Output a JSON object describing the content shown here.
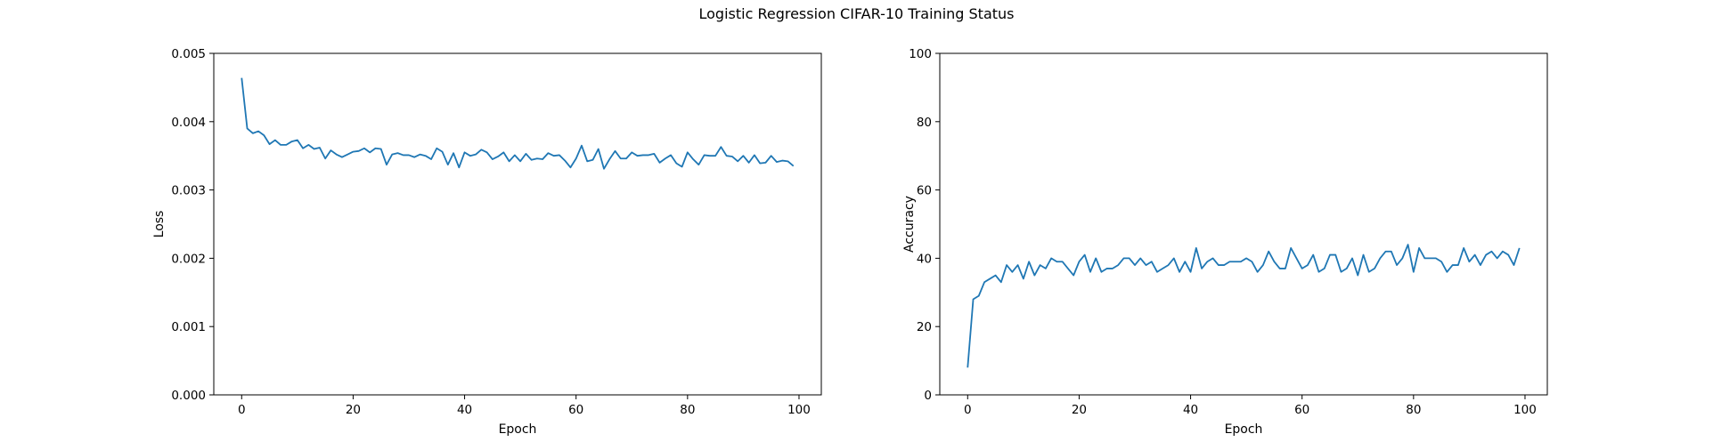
{
  "figure": {
    "title": "Logistic Regression CIFAR-10 Training Status"
  },
  "chart_data": [
    {
      "type": "line",
      "xlabel": "Epoch",
      "ylabel": "Loss",
      "xlim": [
        -5,
        104
      ],
      "ylim": [
        0,
        0.005
      ],
      "xticks": [
        0,
        20,
        40,
        60,
        80,
        100
      ],
      "yticks": [
        0.0,
        0.001,
        0.002,
        0.003,
        0.004,
        0.005
      ],
      "ytick_labels": [
        "0.000",
        "0.001",
        "0.002",
        "0.003",
        "0.004",
        "0.005"
      ],
      "grid": false,
      "color": "#1f77b4",
      "series": [
        {
          "x": [
            0,
            1,
            2,
            3,
            4,
            5,
            6,
            7,
            8,
            9,
            10,
            11,
            12,
            13,
            14,
            15,
            16,
            17,
            18,
            19,
            20,
            21,
            22,
            23,
            24,
            25,
            26,
            27,
            28,
            29,
            30,
            31,
            32,
            33,
            34,
            35,
            36,
            37,
            38,
            39,
            40,
            41,
            42,
            43,
            44,
            45,
            46,
            47,
            48,
            49,
            50,
            51,
            52,
            53,
            54,
            55,
            56,
            57,
            58,
            59,
            60,
            61,
            62,
            63,
            64,
            65,
            66,
            67,
            68,
            69,
            70,
            71,
            72,
            73,
            74,
            75,
            76,
            77,
            78,
            79,
            80,
            81,
            82,
            83,
            84,
            85,
            86,
            87,
            88,
            89,
            90,
            91,
            92,
            93,
            94,
            95,
            96,
            97,
            98,
            99
          ],
          "values": [
            0.00464,
            0.0039,
            0.00383,
            0.00386,
            0.0038,
            0.00367,
            0.00373,
            0.00366,
            0.00366,
            0.00371,
            0.00373,
            0.00361,
            0.00366,
            0.0036,
            0.00362,
            0.00346,
            0.00358,
            0.00352,
            0.00348,
            0.00352,
            0.00356,
            0.00357,
            0.00361,
            0.00355,
            0.00361,
            0.0036,
            0.00337,
            0.00352,
            0.00354,
            0.00351,
            0.00351,
            0.00348,
            0.00352,
            0.0035,
            0.00345,
            0.00361,
            0.00356,
            0.00337,
            0.00354,
            0.00333,
            0.00355,
            0.0035,
            0.00352,
            0.00359,
            0.00355,
            0.00345,
            0.00349,
            0.00355,
            0.00342,
            0.00351,
            0.00342,
            0.00353,
            0.00344,
            0.00346,
            0.00345,
            0.00354,
            0.0035,
            0.00351,
            0.00343,
            0.00333,
            0.00346,
            0.00365,
            0.00342,
            0.00344,
            0.0036,
            0.00331,
            0.00345,
            0.00357,
            0.00346,
            0.00346,
            0.00355,
            0.0035,
            0.00351,
            0.00351,
            0.00353,
            0.0034,
            0.00346,
            0.00351,
            0.00339,
            0.00334,
            0.00355,
            0.00345,
            0.00337,
            0.00351,
            0.0035,
            0.0035,
            0.00363,
            0.0035,
            0.00349,
            0.00342,
            0.0035,
            0.0034,
            0.00351,
            0.00339,
            0.0034,
            0.0035,
            0.00341,
            0.00343,
            0.00342,
            0.00335
          ]
        }
      ]
    },
    {
      "type": "line",
      "xlabel": "Epoch",
      "ylabel": "Accuracy",
      "xlim": [
        -5,
        104
      ],
      "ylim": [
        0,
        100
      ],
      "xticks": [
        0,
        20,
        40,
        60,
        80,
        100
      ],
      "yticks": [
        0,
        20,
        40,
        60,
        80,
        100
      ],
      "ytick_labels": [
        "0",
        "20",
        "40",
        "60",
        "80",
        "100"
      ],
      "grid": false,
      "color": "#1f77b4",
      "series": [
        {
          "x": [
            0,
            1,
            2,
            3,
            4,
            5,
            6,
            7,
            8,
            9,
            10,
            11,
            12,
            13,
            14,
            15,
            16,
            17,
            18,
            19,
            20,
            21,
            22,
            23,
            24,
            25,
            26,
            27,
            28,
            29,
            30,
            31,
            32,
            33,
            34,
            35,
            36,
            37,
            38,
            39,
            40,
            41,
            42,
            43,
            44,
            45,
            46,
            47,
            48,
            49,
            50,
            51,
            52,
            53,
            54,
            55,
            56,
            57,
            58,
            59,
            60,
            61,
            62,
            63,
            64,
            65,
            66,
            67,
            68,
            69,
            70,
            71,
            72,
            73,
            74,
            75,
            76,
            77,
            78,
            79,
            80,
            81,
            82,
            83,
            84,
            85,
            86,
            87,
            88,
            89,
            90,
            91,
            92,
            93,
            94,
            95,
            96,
            97,
            98,
            99
          ],
          "values": [
            8,
            28,
            29,
            33,
            34,
            35,
            33,
            38,
            36,
            38,
            34,
            39,
            35,
            38,
            37,
            40,
            39,
            39,
            37,
            35,
            39,
            41,
            36,
            40,
            36,
            37,
            37,
            38,
            40,
            40,
            38,
            40,
            38,
            39,
            36,
            37,
            38,
            40,
            36,
            39,
            36,
            43,
            37,
            39,
            40,
            38,
            38,
            39,
            39,
            39,
            40,
            39,
            36,
            38,
            42,
            39,
            37,
            37,
            43,
            40,
            37,
            38,
            41,
            36,
            37,
            41,
            41,
            36,
            37,
            40,
            35,
            41,
            36,
            37,
            40,
            42,
            42,
            38,
            40,
            44,
            36,
            43,
            40,
            40,
            40,
            39,
            36,
            38,
            38,
            43,
            39,
            41,
            38,
            41,
            42,
            40,
            42,
            41,
            38,
            43
          ]
        }
      ]
    }
  ]
}
